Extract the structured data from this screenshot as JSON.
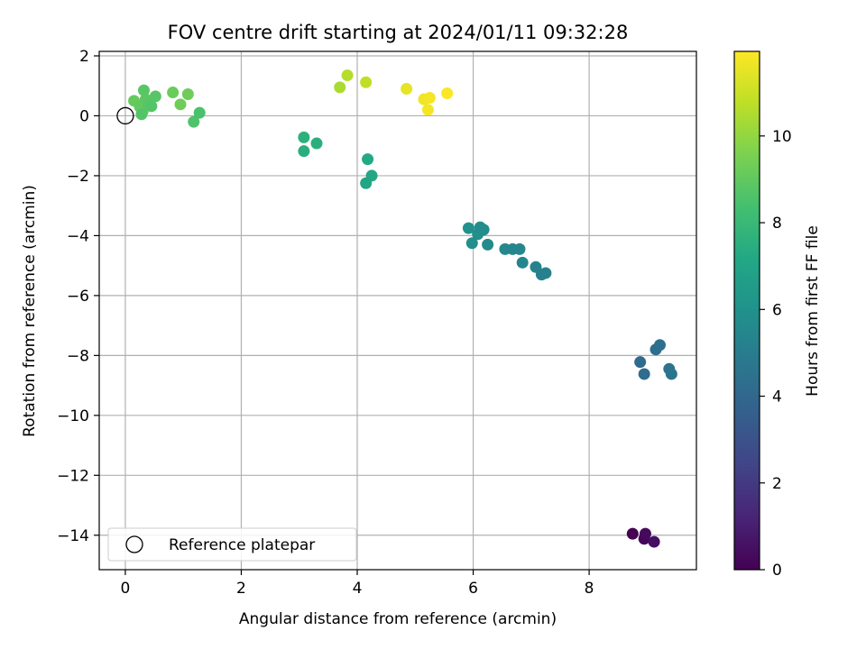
{
  "chart_data": {
    "type": "scatter",
    "title": "FOV centre drift starting at 2024/01/11 09:32:28",
    "xlabel": "Angular distance from reference (arcmin)",
    "ylabel": "Rotation from reference (arcmin)",
    "xlim": [
      -0.45,
      9.85
    ],
    "ylim": [
      -15.15,
      2.15
    ],
    "xticks": [
      0,
      2,
      4,
      6,
      8
    ],
    "yticks": [
      2,
      0,
      -2,
      -4,
      -6,
      -8,
      -10,
      -12,
      -14
    ],
    "grid": true,
    "colormap": "viridis",
    "colorbar": {
      "label": "Hours from first FF file",
      "range": [
        0,
        11.95
      ],
      "ticks": [
        0,
        2,
        4,
        6,
        8,
        10
      ]
    },
    "legend": {
      "position": "lower-left",
      "entries": [
        "Reference platepar"
      ]
    },
    "reference_point": {
      "x": 0,
      "y": 0,
      "label": "Reference platepar"
    },
    "points": [
      {
        "x": 8.75,
        "y": -13.95,
        "c": 0.0
      },
      {
        "x": 8.95,
        "y": -14.12,
        "c": 0.15
      },
      {
        "x": 8.97,
        "y": -13.95,
        "c": 0.3
      },
      {
        "x": 9.12,
        "y": -14.22,
        "c": 0.45
      },
      {
        "x": 8.88,
        "y": -8.22,
        "c": 4.1
      },
      {
        "x": 8.95,
        "y": -8.62,
        "c": 4.2
      },
      {
        "x": 9.15,
        "y": -7.8,
        "c": 4.3
      },
      {
        "x": 9.22,
        "y": -7.65,
        "c": 4.4
      },
      {
        "x": 9.38,
        "y": -8.45,
        "c": 4.5
      },
      {
        "x": 9.42,
        "y": -8.62,
        "c": 4.6
      },
      {
        "x": 5.92,
        "y": -3.75,
        "c": 6.0
      },
      {
        "x": 5.98,
        "y": -4.25,
        "c": 5.9
      },
      {
        "x": 6.08,
        "y": -3.95,
        "c": 5.9
      },
      {
        "x": 6.12,
        "y": -3.72,
        "c": 5.8
      },
      {
        "x": 6.18,
        "y": -3.8,
        "c": 5.8
      },
      {
        "x": 6.25,
        "y": -4.3,
        "c": 5.7
      },
      {
        "x": 6.55,
        "y": -4.45,
        "c": 5.6
      },
      {
        "x": 6.68,
        "y": -4.45,
        "c": 5.5
      },
      {
        "x": 6.8,
        "y": -4.45,
        "c": 5.5
      },
      {
        "x": 6.85,
        "y": -4.9,
        "c": 5.4
      },
      {
        "x": 7.08,
        "y": -5.05,
        "c": 5.3
      },
      {
        "x": 7.18,
        "y": -5.3,
        "c": 5.2
      },
      {
        "x": 7.25,
        "y": -5.25,
        "c": 5.2
      },
      {
        "x": 3.08,
        "y": -0.72,
        "c": 7.6
      },
      {
        "x": 3.08,
        "y": -1.18,
        "c": 7.5
      },
      {
        "x": 3.3,
        "y": -0.92,
        "c": 7.5
      },
      {
        "x": 4.18,
        "y": -1.45,
        "c": 7.2
      },
      {
        "x": 4.25,
        "y": -2.0,
        "c": 7.1
      },
      {
        "x": 4.15,
        "y": -2.25,
        "c": 7.0
      },
      {
        "x": 0.15,
        "y": 0.5,
        "c": 9.1
      },
      {
        "x": 0.25,
        "y": 0.3,
        "c": 9.0
      },
      {
        "x": 0.3,
        "y": 0.15,
        "c": 9.0
      },
      {
        "x": 0.32,
        "y": 0.85,
        "c": 8.8
      },
      {
        "x": 0.35,
        "y": 0.55,
        "c": 8.9
      },
      {
        "x": 0.4,
        "y": 0.35,
        "c": 8.8
      },
      {
        "x": 0.45,
        "y": 0.32,
        "c": 8.7
      },
      {
        "x": 0.52,
        "y": 0.65,
        "c": 8.8
      },
      {
        "x": 0.28,
        "y": 0.05,
        "c": 8.7
      },
      {
        "x": 1.18,
        "y": -0.2,
        "c": 8.6
      },
      {
        "x": 1.28,
        "y": 0.1,
        "c": 8.5
      },
      {
        "x": 0.82,
        "y": 0.78,
        "c": 9.2
      },
      {
        "x": 0.95,
        "y": 0.38,
        "c": 9.3
      },
      {
        "x": 1.08,
        "y": 0.72,
        "c": 9.3
      },
      {
        "x": 3.7,
        "y": 0.95,
        "c": 10.4
      },
      {
        "x": 3.83,
        "y": 1.35,
        "c": 10.6
      },
      {
        "x": 4.15,
        "y": 1.12,
        "c": 10.8
      },
      {
        "x": 4.85,
        "y": 0.9,
        "c": 11.5
      },
      {
        "x": 5.15,
        "y": 0.55,
        "c": 11.7
      },
      {
        "x": 5.25,
        "y": 0.6,
        "c": 11.8
      },
      {
        "x": 5.22,
        "y": 0.2,
        "c": 11.8
      },
      {
        "x": 5.55,
        "y": 0.75,
        "c": 11.9
      }
    ]
  }
}
